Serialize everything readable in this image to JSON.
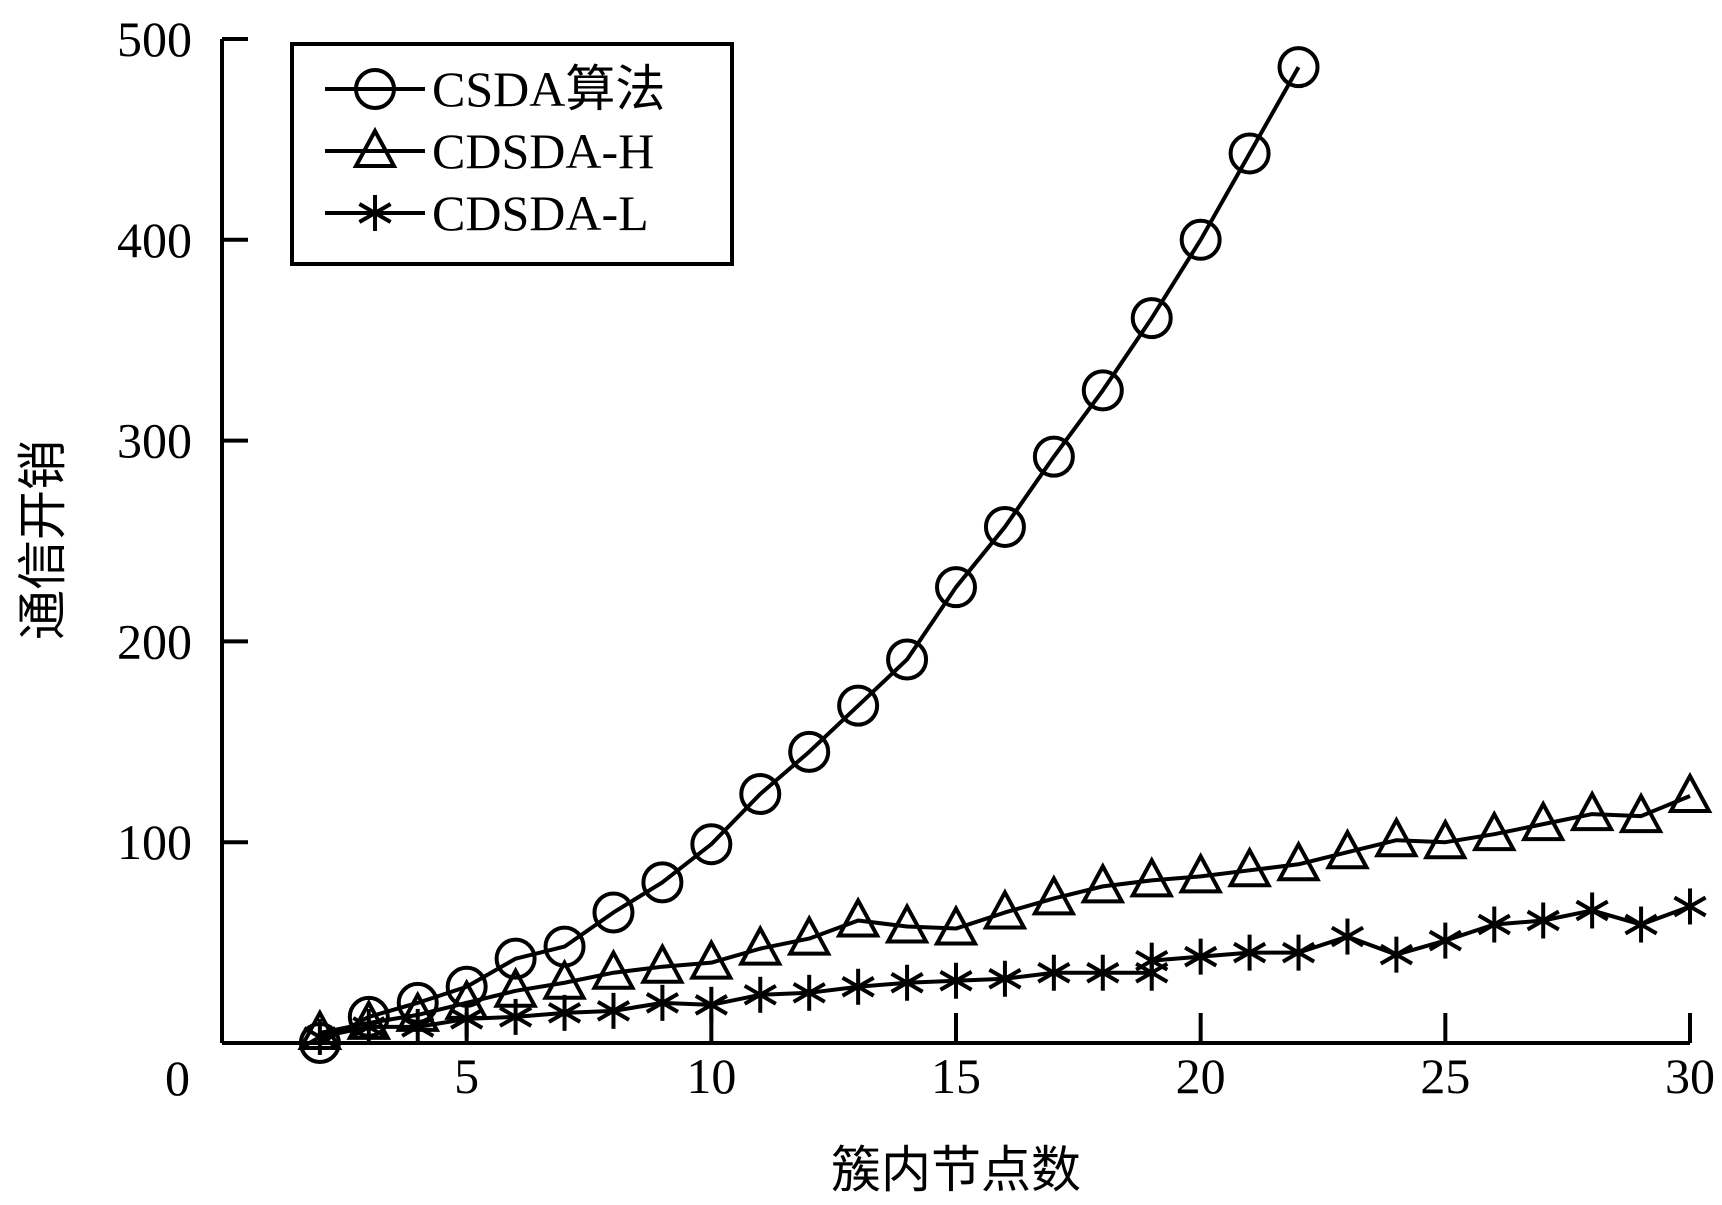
{
  "chart_data": {
    "type": "line",
    "title": "",
    "xlabel": "簇内节点数",
    "ylabel": "通信开销",
    "xlim": [
      0,
      30
    ],
    "ylim": [
      0,
      500
    ],
    "x_ticks": [
      5,
      10,
      15,
      20,
      25,
      30
    ],
    "y_ticks": [
      0,
      100,
      200,
      300,
      400,
      500
    ],
    "grid": false,
    "legend_position": "top-left",
    "series": [
      {
        "name": "CSDA算法",
        "marker": "circle",
        "color": "#000000",
        "x": [
          2,
          3,
          4,
          5,
          6,
          7,
          8,
          9,
          10,
          11,
          12,
          13,
          14,
          15,
          16,
          17,
          18,
          19,
          20,
          21,
          22
        ],
        "y": [
          0,
          13,
          20,
          28,
          42,
          48,
          65,
          80,
          99,
          124,
          145,
          168,
          191,
          227,
          257,
          292,
          325,
          361,
          400,
          443,
          486
        ]
      },
      {
        "name": "CDSDA-H",
        "marker": "triangle",
        "color": "#000000",
        "x": [
          2,
          3,
          4,
          5,
          6,
          7,
          8,
          9,
          10,
          11,
          12,
          13,
          14,
          15,
          16,
          17,
          18,
          19,
          20,
          21,
          22,
          23,
          24,
          25,
          26,
          27,
          28,
          29,
          30
        ],
        "y": [
          5,
          10,
          14,
          20,
          26,
          30,
          35,
          38,
          40,
          47,
          52,
          61,
          58,
          57,
          65,
          72,
          78,
          81,
          83,
          86,
          89,
          95,
          101,
          100,
          104,
          109,
          114,
          113,
          123
        ]
      },
      {
        "name": "CDSDA-L",
        "marker": "asterisk",
        "color": "#000000",
        "x": [
          2,
          3,
          4,
          5,
          6,
          7,
          8,
          9,
          10,
          11,
          12,
          13,
          14,
          15,
          16,
          17,
          18,
          19,
          19,
          20,
          21,
          22,
          23,
          24,
          25,
          26,
          27,
          28,
          29,
          30
        ],
        "y": [
          3,
          8,
          8,
          12,
          13,
          15,
          16,
          20,
          19,
          24,
          25,
          28,
          30,
          31,
          32,
          35,
          35,
          35,
          41,
          43,
          45,
          45,
          53,
          44,
          51,
          59,
          61,
          66,
          59,
          68
        ]
      }
    ]
  }
}
